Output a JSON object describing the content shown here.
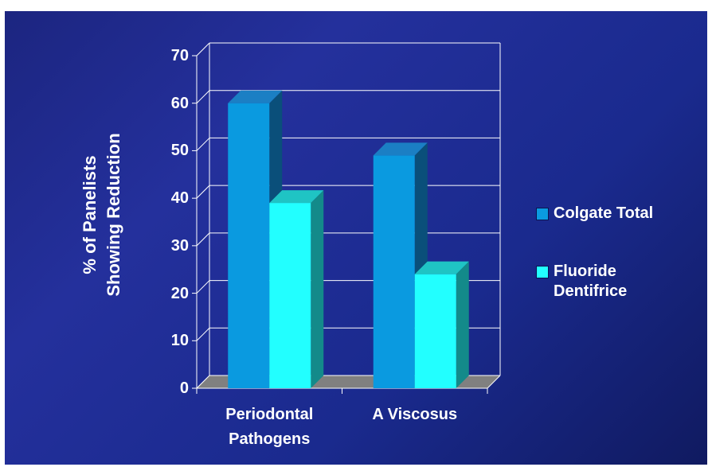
{
  "chart_data": {
    "type": "bar",
    "categories": [
      "Periodontal Pathogens",
      "A Viscosus"
    ],
    "category_lines": [
      [
        "Periodontal",
        "Pathogens"
      ],
      [
        "A Viscosus"
      ]
    ],
    "series": [
      {
        "name": "Colgate Total",
        "values": [
          60,
          49
        ],
        "color": "#0a9ae0",
        "side_color": "#0a4f7a",
        "top_color": "#1b7fc4"
      },
      {
        "name": "Fluoride Dentifrice",
        "values": [
          39,
          24
        ],
        "color": "#22ffff",
        "side_color": "#138a8a",
        "top_color": "#1fc4c4"
      }
    ],
    "legend_lines": [
      [
        "Colgate Total"
      ],
      [
        "Fluoride",
        "Dentifrice"
      ]
    ],
    "ylabel_lines": [
      "% of Panelists",
      "Showing Reduction"
    ],
    "ylim": [
      0,
      70
    ],
    "yticks": [
      0,
      10,
      20,
      30,
      40,
      50,
      60,
      70
    ],
    "grid": true,
    "legend_position": "right",
    "colors": {
      "background": "#1c2580",
      "floor": "#808080",
      "wall_lines": "#ffffff"
    }
  }
}
